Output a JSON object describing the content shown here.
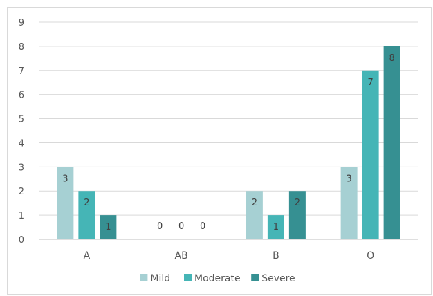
{
  "chart_data": {
    "type": "bar",
    "title": "",
    "xlabel": "",
    "ylabel": "",
    "categories": [
      "A",
      "AB",
      "B",
      "O"
    ],
    "ylim": [
      0,
      9
    ],
    "yticks": [
      0,
      1,
      2,
      3,
      4,
      5,
      6,
      7,
      8,
      9
    ],
    "grid": true,
    "legend_position": "bottom",
    "series": [
      {
        "name": "Mild",
        "values": [
          3,
          0,
          2,
          3
        ],
        "color": "#a6d0d3"
      },
      {
        "name": "Moderate",
        "values": [
          2,
          0,
          1,
          7
        ],
        "color": "#45b5b6"
      },
      {
        "name": "Severe",
        "values": [
          1,
          0,
          2,
          8
        ],
        "color": "#369092"
      }
    ]
  }
}
